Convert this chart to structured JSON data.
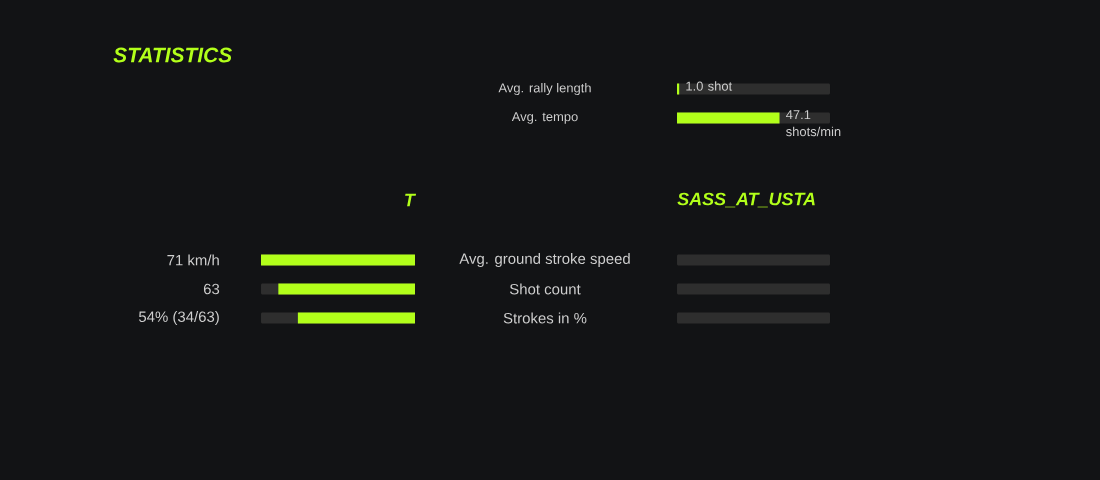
{
  "chart_data": [
    {
      "type": "bar",
      "orientation": "horizontal",
      "color": "#b2ff1a",
      "categories": [
        "Avg. rally length",
        "Avg. tempo"
      ],
      "values": [
        1.0,
        47.1
      ],
      "value_labels": [
        "1.0 shot",
        "47.1 shots/min"
      ]
    },
    {
      "type": "bar",
      "title": "STATISTICS",
      "orientation": "horizontal",
      "categories": [
        "Avg. ground stroke speed",
        "Shot count",
        "Strokes in %"
      ],
      "series": [
        {
          "name": "T",
          "color": "#b2ff1a",
          "values": [
            71,
            63,
            54
          ],
          "value_labels": [
            "71 km/h",
            "63",
            "54% (34/63)"
          ]
        },
        {
          "name": "SASS_AT_USTA",
          "color": "#b2ff1a",
          "values": [
            0,
            0,
            0
          ]
        }
      ]
    }
  ]
}
